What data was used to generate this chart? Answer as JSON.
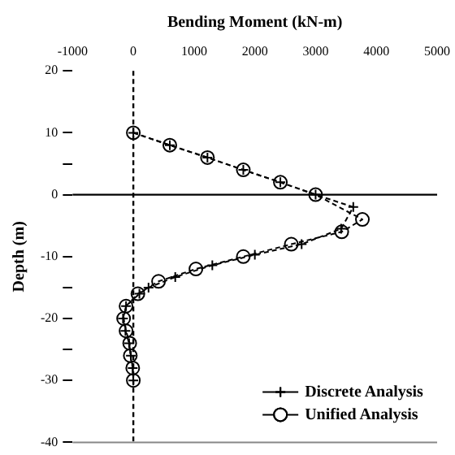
{
  "chart_data": {
    "type": "line",
    "xlabel": "Bending Moment (kN-m)",
    "ylabel": "Depth (m)",
    "xlim": [
      -1000,
      5000
    ],
    "xticks": [
      -1000,
      0,
      1000,
      2000,
      3000,
      4000,
      5000
    ],
    "ylim": [
      -40,
      20
    ],
    "yticks": [
      20,
      10,
      {
        "value": 5,
        "label": null
      },
      0,
      -10,
      {
        "value": -15,
        "label": null
      },
      -20,
      {
        "value": -25,
        "label": null
      },
      -30,
      -40
    ],
    "series": [
      {
        "name": "Discrete Analysis",
        "color": "#000000",
        "marker": "cross",
        "line_style": "dashed",
        "x": [
          0,
          600,
          1220,
          1810,
          2420,
          3000,
          3620,
          3420,
          2770,
          2000,
          1300,
          690,
          250,
          100,
          -120,
          -170,
          -130,
          -70,
          -40,
          -10,
          0
        ],
        "values": [
          10,
          8,
          6,
          4,
          2,
          0,
          -2,
          -5.5,
          -8,
          -9.7,
          -11.4,
          -13.3,
          -15,
          -16,
          -18,
          -20,
          -22,
          -24,
          -26,
          -28,
          -30
        ]
      },
      {
        "name": "Unified Analysis",
        "color": "#000000",
        "marker": "circle",
        "line_style": "dashed",
        "x": [
          0,
          600,
          1220,
          1810,
          2420,
          3000,
          3770,
          3430,
          2600,
          1810,
          1030,
          415,
          75,
          -120,
          -160,
          -120,
          -60,
          -50,
          -10,
          0
        ],
        "values": [
          10,
          8,
          6,
          4,
          2,
          0,
          -4,
          -6,
          -8,
          -10,
          -12,
          -14,
          -16,
          -18,
          -20,
          -22,
          -24,
          -26,
          -28,
          -30
        ]
      }
    ],
    "ref_lines": [
      {
        "axis": "y",
        "value": 0,
        "color": "#000000",
        "line_style": "solid"
      },
      {
        "axis": "x",
        "value": 0,
        "color": "#000000",
        "line_style": "dashed"
      }
    ],
    "grid": false,
    "legend": "bottom right"
  }
}
